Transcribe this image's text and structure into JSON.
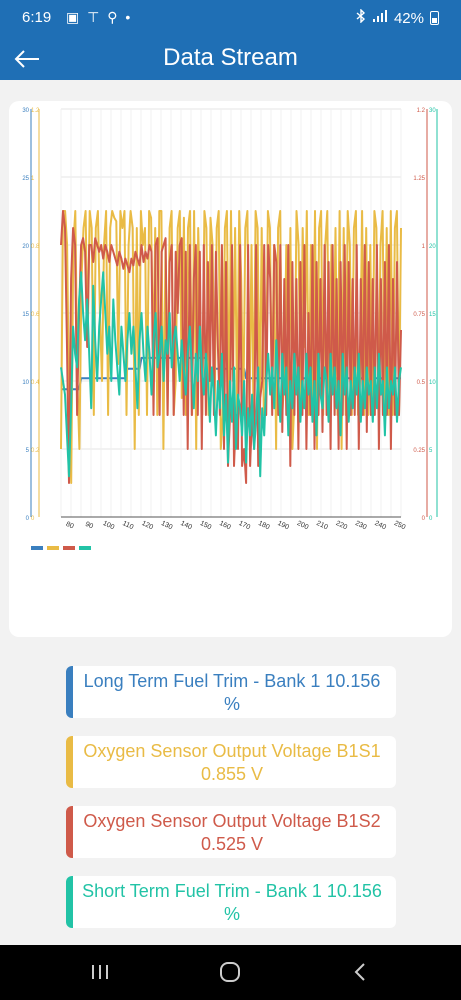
{
  "status": {
    "time": "6:19",
    "notifications": "▣ ⊤ ⚲ •",
    "battery": "42%"
  },
  "app": {
    "title": "Data Stream"
  },
  "chart_data": {
    "type": "line",
    "x_ticks": [
      "80",
      "90",
      "100",
      "110",
      "120",
      "130",
      "140",
      "150",
      "160",
      "170",
      "180",
      "190",
      "200",
      "210",
      "220",
      "230",
      "240",
      "250"
    ],
    "axes": {
      "blue_ticks": [
        "0",
        "5",
        "10",
        "15",
        "20",
        "25",
        "30"
      ],
      "yellow_ticks": [
        "0",
        "0.2",
        "0.4",
        "0.6",
        "0.8",
        "1",
        "1.2"
      ],
      "red_ticks": [
        "0",
        "0.25",
        "0.5",
        "0.75",
        "1",
        "1.25",
        "1.2"
      ],
      "teal_ticks": [
        "0",
        "5",
        "10",
        "15",
        "20",
        "",
        "30"
      ]
    },
    "series": [
      {
        "color": "#3a7fbf",
        "values": [
          9.4,
          9.4,
          9.4,
          9.4,
          9.4,
          9.4,
          9.4,
          9.4,
          9.4,
          9.4,
          10.2,
          10.2,
          10.2,
          10.2,
          10.2,
          10.2,
          10.2,
          10.2,
          10.2,
          10.2,
          10.2,
          10.2,
          10.2,
          10.2,
          10.2,
          10.2,
          10.2,
          10.2,
          10.2,
          10.2,
          10.2,
          10.2,
          10.2,
          10.9,
          10.9,
          10.9,
          10.9,
          10.9,
          10.9,
          10.9,
          11.7,
          11.7,
          11.7,
          11.7,
          11.7,
          11.7,
          11.7,
          11.7,
          11.7,
          11.7,
          11.7,
          11.7,
          11.7,
          11.7,
          11.7,
          11.7,
          11.7,
          11.7,
          11.7,
          11.7,
          11.7,
          11.7,
          11.7,
          11.7,
          11.7,
          11.7,
          11.7,
          11.7,
          11.7,
          11.7,
          11.7,
          11.7,
          11.7,
          11.7,
          10.9,
          10.9,
          10.9,
          10.9,
          10.9,
          10.9,
          10.9,
          10.9,
          10.9,
          10.9,
          10.9,
          10.9,
          10.9,
          10.9,
          10.9,
          10.9,
          10.9,
          10.9,
          10.2,
          10.2,
          10.2,
          10.2,
          10.2,
          10.2,
          10.2,
          10.2,
          10.2,
          10.2,
          10.2,
          10.2,
          10.2,
          10.2,
          10.2,
          10.2,
          10.2,
          10.2,
          10.2,
          10.2,
          10.2,
          10.2,
          10.2,
          10.2,
          10.2,
          10.2,
          10.2,
          10.2,
          10.2,
          10.2,
          10.2,
          10.2,
          10.2,
          10.2,
          10.2,
          10.2,
          10.2,
          10.2,
          10.2,
          10.2,
          10.2,
          10.2,
          10.2,
          10.2,
          10.2,
          10.2,
          10.2,
          10.2,
          10.2,
          10.2,
          10.2,
          10.2,
          10.2,
          10.2,
          10.2,
          10.2,
          10.2,
          10.2,
          10.2,
          10.2,
          10.2,
          10.2,
          10.2,
          10.2,
          10.2,
          10.2,
          10.2,
          10.2,
          10.2,
          10.2,
          10.2,
          10.2,
          10.2,
          10.2,
          10.2,
          10.2,
          10.2,
          10.2
        ]
      },
      {
        "color": "#e9bb45",
        "values": [
          0.2,
          0.9,
          0.9,
          0.8,
          0.3,
          0.1,
          0.8,
          0.9,
          0.4,
          0.2,
          0.7,
          0.85,
          0.9,
          0.5,
          0.9,
          0.85,
          0.3,
          0.85,
          0.9,
          0.6,
          0.4,
          0.8,
          0.9,
          0.3,
          0.85,
          0.9,
          0.88,
          0.87,
          0.45,
          0.9,
          0.85,
          0.9,
          0.3,
          0.8,
          0.9,
          0.85,
          0.2,
          0.85,
          0.3,
          0.9,
          0.8,
          0.85,
          0.3,
          0.9,
          0.88,
          0.45,
          0.85,
          0.3,
          0.9,
          0.9,
          0.2,
          0.8,
          0.3,
          0.85,
          0.9,
          0.3,
          0.4,
          0.85,
          0.9,
          0.35,
          0.88,
          0.3,
          0.85,
          0.9,
          0.3,
          0.9,
          0.2,
          0.85,
          0.6,
          0.3,
          0.9,
          0.85,
          0.3,
          0.88,
          0.8,
          0.3,
          0.85,
          0.9,
          0.2,
          0.3,
          0.85,
          0.9,
          0.3,
          0.9,
          0.4,
          0.85,
          0.3,
          0.9,
          0.7,
          0.3,
          0.85,
          0.9,
          0.3,
          0.8,
          0.3,
          0.9,
          0.85,
          0.3,
          0.85,
          0.3,
          0.3,
          0.9,
          0.85,
          0.35,
          0.8,
          0.2,
          0.85,
          0.9,
          0.3,
          0.4,
          0.8,
          0.3,
          0.85,
          0.2,
          0.35,
          0.9,
          0.8,
          0.3,
          0.85,
          0.5,
          0.9,
          0.3,
          0.8,
          0.3,
          0.9,
          0.2,
          0.85,
          0.9,
          0.3,
          0.8,
          0.9,
          0.3,
          0.8,
          0.4,
          0.85,
          0.3,
          0.9,
          0.2,
          0.85,
          0.3,
          0.9,
          0.8,
          0.3,
          0.85,
          0.9,
          0.3,
          0.4,
          0.9,
          0.3,
          0.85,
          0.3,
          0.8,
          0.3,
          0.9,
          0.85,
          0.3,
          0.8,
          0.9,
          0.3,
          0.85,
          0.3,
          0.9,
          0.3,
          0.85,
          0.9,
          0.3,
          0.85
        ]
      },
      {
        "color": "#cf5a4a",
        "values": [
          0.8,
          0.9,
          0.85,
          0.5,
          0.1,
          0.7,
          0.85,
          0.8,
          0.3,
          0.6,
          0.8,
          0.82,
          0.78,
          0.5,
          0.8,
          0.8,
          0.75,
          0.82,
          0.8,
          0.78,
          0.8,
          0.76,
          0.8,
          0.78,
          0.75,
          0.8,
          0.78,
          0.76,
          0.74,
          0.78,
          0.76,
          0.73,
          0.76,
          0.74,
          0.72,
          0.76,
          0.74,
          0.78,
          0.76,
          0.74,
          0.8,
          0.75,
          0.78,
          0.76,
          0.8,
          0.78,
          0.3,
          0.8,
          0.82,
          0.3,
          0.78,
          0.8,
          0.82,
          0.3,
          0.75,
          0.8,
          0.3,
          0.78,
          0.6,
          0.8,
          0.82,
          0.3,
          0.78,
          0.2,
          0.8,
          0.3,
          0.7,
          0.8,
          0.3,
          0.78,
          0.2,
          0.8,
          0.3,
          0.75,
          0.4,
          0.8,
          0.3,
          0.78,
          0.5,
          0.3,
          0.8,
          0.2,
          0.75,
          0.15,
          0.3,
          0.8,
          0.15,
          0.3,
          0.2,
          0.8,
          0.15,
          0.2,
          0.1,
          0.8,
          0.15,
          0.3,
          0.2,
          0.8,
          0.15,
          0.35,
          0.4,
          0.8,
          0.3,
          0.8,
          0.7,
          0.3,
          0.8,
          0.75,
          0.3,
          0.8,
          0.25,
          0.7,
          0.3,
          0.8,
          0.15,
          0.75,
          0.3,
          0.7,
          0.2,
          0.75,
          0.3,
          0.8,
          0.2,
          0.6,
          0.3,
          0.8,
          0.2,
          0.75,
          0.3,
          0.7,
          0.25,
          0.8,
          0.3,
          0.75,
          0.2,
          0.8,
          0.3,
          0.7,
          0.2,
          0.75,
          0.3,
          0.8,
          0.2,
          0.75,
          0.3,
          0.7,
          0.3,
          0.8,
          0.2,
          0.7,
          0.3,
          0.8,
          0.25,
          0.75,
          0.3,
          0.7,
          0.3,
          0.8,
          0.2,
          0.7,
          0.3,
          0.75,
          0.3,
          0.8,
          0.2,
          0.7,
          0.3,
          0.75,
          0.3,
          0.55
        ]
      },
      {
        "color": "#22c3a6",
        "values": [
          11,
          10,
          9,
          6,
          3,
          8,
          14,
          12,
          11,
          16,
          18,
          15,
          13,
          16,
          12,
          8,
          17,
          13,
          10,
          14,
          16,
          18,
          15,
          12,
          14,
          10,
          16,
          13,
          11,
          9,
          14,
          12,
          10,
          13,
          15,
          12,
          14,
          11,
          8,
          13,
          15,
          12,
          10,
          14,
          12,
          9,
          13,
          15,
          11,
          12,
          14,
          10,
          13,
          12,
          15,
          11,
          13,
          14,
          12,
          10,
          13,
          11,
          9,
          12,
          14,
          11,
          8,
          12,
          10,
          14,
          11,
          9,
          12,
          10,
          7,
          11,
          9,
          6,
          10,
          8,
          12,
          6,
          9,
          4,
          10,
          7,
          11,
          5,
          9,
          8,
          6,
          10,
          4,
          8,
          6,
          9,
          5,
          7,
          11,
          3,
          8,
          6,
          10,
          12,
          9,
          11,
          8,
          13,
          10,
          7,
          12,
          9,
          11,
          6,
          10,
          8,
          12,
          9,
          11,
          7,
          10,
          8,
          12,
          9,
          11,
          7,
          10,
          6,
          12,
          9,
          8,
          11,
          10,
          7,
          12,
          9,
          11,
          8,
          10,
          6,
          12,
          9,
          11,
          7,
          10,
          8,
          11,
          9,
          12,
          7,
          10,
          8,
          11,
          9,
          10,
          7,
          11,
          8,
          12,
          9,
          10,
          6,
          11,
          8,
          10,
          9,
          11,
          7,
          10,
          11
        ]
      }
    ]
  },
  "legend_colors": [
    "#3a7fbf",
    "#e9bb45",
    "#cf5a4a",
    "#22c3a6"
  ],
  "cards": [
    {
      "text": "Long Term Fuel Trim - Bank 1 10.156 %",
      "color": "#3a7fbf"
    },
    {
      "text": "Oxygen Sensor Output Voltage B1S1 0.855 V",
      "color": "#e9bb45"
    },
    {
      "text": "Oxygen Sensor Output Voltage B1S2 0.525 V",
      "color": "#cf5a4a"
    },
    {
      "text": "Short Term Fuel Trim - Bank 1 10.156 %",
      "color": "#22c3a6"
    }
  ]
}
